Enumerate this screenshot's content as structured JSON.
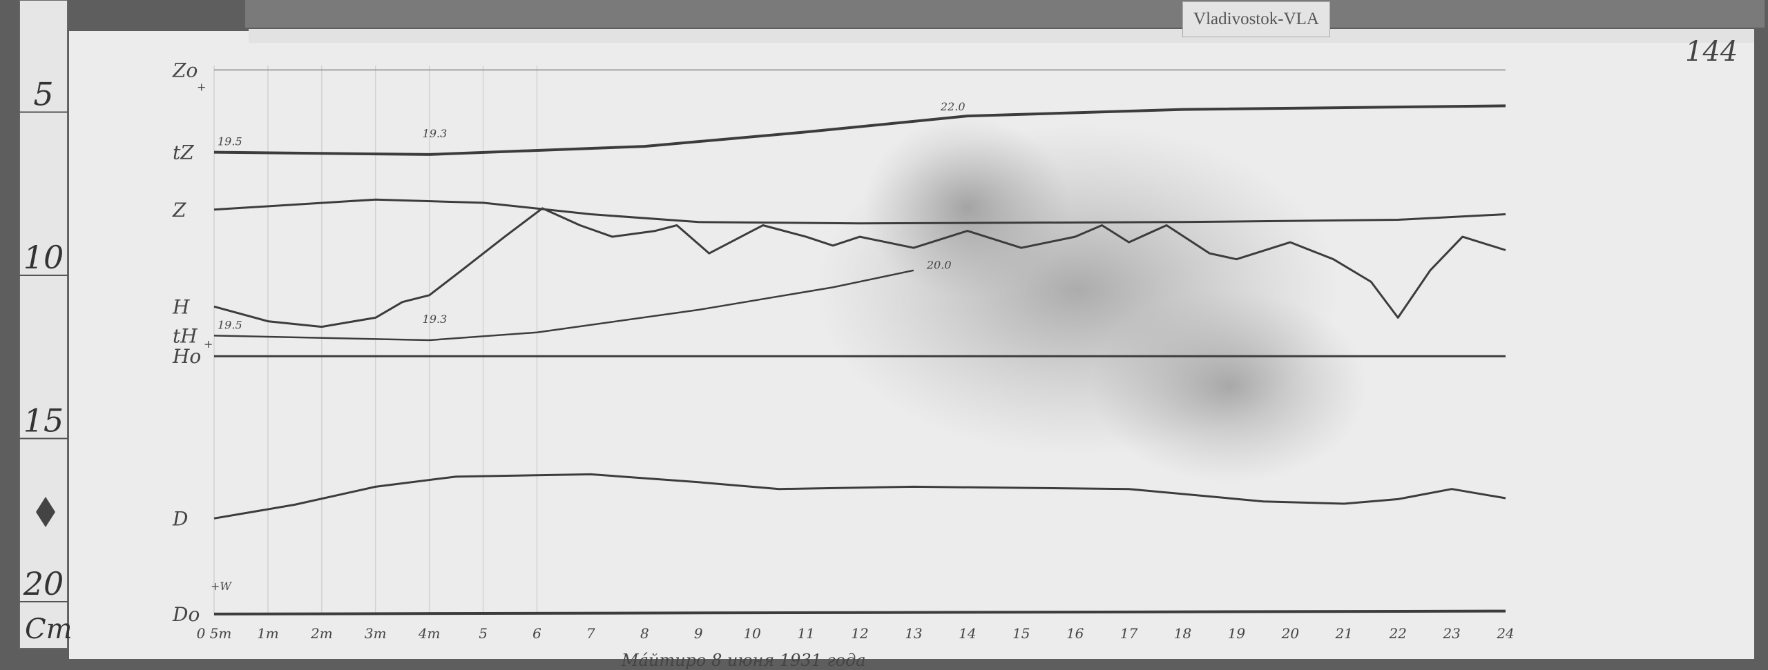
{
  "plate_label": "Vladivostok-VLA",
  "sheet_number": "144",
  "ruler": {
    "ticks": [
      "5",
      "10",
      "15",
      "20"
    ],
    "tick_values_cm": [
      5,
      10,
      15,
      20
    ],
    "unit": "Cm"
  },
  "footer_note": "Мáйтиро 8 июня 1931 года",
  "colors": {
    "paper": "#ececec",
    "ink": "#3c3c3c",
    "background": "#5e5e5e"
  },
  "chart_data": {
    "type": "line",
    "x_ticks": [
      "0 5m",
      "1m",
      "2m",
      "3m",
      "4m",
      "5",
      "6",
      "7",
      "8",
      "9",
      "10",
      "11",
      "12",
      "13",
      "14",
      "15",
      "16",
      "17",
      "18",
      "19",
      "20",
      "21",
      "22",
      "23",
      "24"
    ],
    "xlim": [
      0,
      24
    ],
    "y_unit": "cm (ruler scale)",
    "y_direction": "down",
    "annotations": {
      "tZ": [
        "19.5",
        "19.3",
        "22.0"
      ],
      "tH": [
        "19.5",
        "19.3",
        "20.0"
      ],
      "D0": "+W",
      "Z0": "+",
      "H0": "+"
    },
    "series": [
      {
        "name": "Zo",
        "x": [
          0,
          24
        ],
        "y": [
          4.3,
          4.3
        ]
      },
      {
        "name": "tZ",
        "x": [
          0,
          4,
          8,
          11,
          14,
          18,
          24
        ],
        "y": [
          6.82,
          6.89,
          6.64,
          6.2,
          5.71,
          5.51,
          5.4
        ]
      },
      {
        "name": "Z",
        "x": [
          0,
          3,
          5,
          7,
          9,
          12,
          18,
          22,
          24
        ],
        "y": [
          8.58,
          8.27,
          8.37,
          8.72,
          8.96,
          9.0,
          8.96,
          8.89,
          8.72
        ]
      },
      {
        "name": "H",
        "x": [
          0,
          1,
          2,
          3,
          3.5,
          4,
          4.6,
          5.4,
          6.1,
          6.8,
          7.4,
          8.2,
          8.6,
          9.2,
          10,
          10.2,
          11,
          11.5,
          12,
          13,
          14,
          15,
          16,
          16.5,
          17,
          17.7,
          18.5,
          19,
          20,
          20.8,
          21.5,
          22,
          22.6,
          23.2,
          24
        ],
        "y": [
          11.55,
          12.0,
          12.17,
          11.89,
          11.41,
          11.2,
          10.44,
          9.41,
          8.54,
          9.06,
          9.41,
          9.23,
          9.06,
          9.92,
          9.23,
          9.06,
          9.41,
          9.68,
          9.41,
          9.75,
          9.23,
          9.75,
          9.41,
          9.06,
          9.58,
          9.06,
          9.92,
          10.1,
          9.58,
          10.1,
          10.79,
          11.89,
          10.44,
          9.41,
          9.82
        ]
      },
      {
        "name": "tH",
        "x": [
          0,
          4,
          6,
          9,
          11.5,
          13
        ],
        "y": [
          12.44,
          12.58,
          12.34,
          11.65,
          10.96,
          10.44
        ]
      },
      {
        "name": "Ho",
        "x": [
          0,
          24
        ],
        "y": [
          13.07,
          13.07
        ]
      },
      {
        "name": "D",
        "x": [
          0,
          1.5,
          3,
          4.5,
          7,
          9,
          10.5,
          13,
          17,
          19.5,
          21,
          22,
          23,
          24
        ],
        "y": [
          18.04,
          17.62,
          17.07,
          16.76,
          16.69,
          16.93,
          17.14,
          17.07,
          17.14,
          17.52,
          17.59,
          17.45,
          17.14,
          17.42
        ]
      },
      {
        "name": "Do",
        "x": [
          0,
          24
        ],
        "y": [
          20.97,
          20.88
        ]
      }
    ]
  }
}
